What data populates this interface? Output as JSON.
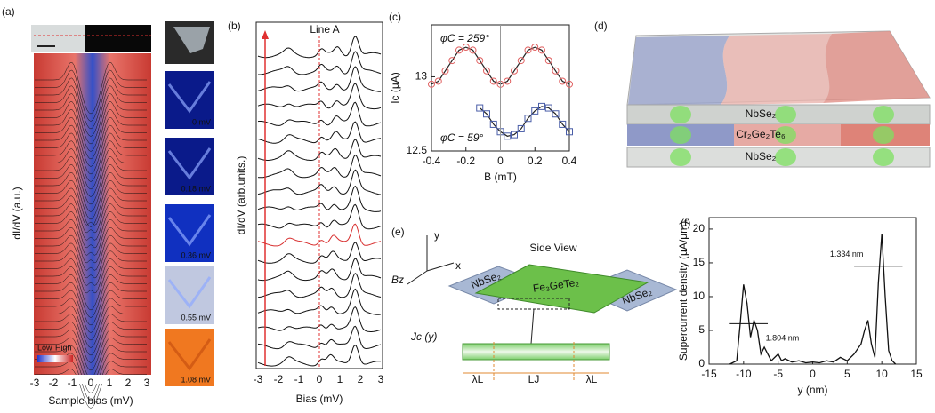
{
  "figure": {
    "a": {
      "label": "(a)",
      "ylabel": "dI/dV (a.u.)",
      "xlabel": "Sample bias (mV)",
      "xticks": [
        -3,
        -2,
        -1,
        0,
        1,
        2,
        3
      ],
      "legend_low": "Low",
      "legend_high": "High",
      "maps": [
        "0 mV",
        "0.18 mV",
        "0.36 mV",
        "0.55 mV",
        "1.08 mV"
      ]
    },
    "b": {
      "label": "(b)",
      "line": "Line A",
      "ylabel": "dI/dV (arb.units.)",
      "xlabel": "Bias (mV)",
      "xticks": [
        -3,
        -2,
        -1,
        0,
        1,
        2,
        3
      ]
    },
    "d": {
      "label": "(d)",
      "layers": [
        "NbSe₂",
        "Cr₂Ge₂Te₆",
        "NbSe₂"
      ]
    },
    "e": {
      "label": "(e)",
      "view": "Side View",
      "axes": [
        "y",
        "x",
        "Bz"
      ],
      "electrodes": [
        "NbSe₂",
        "NbSe₂"
      ],
      "flake": "Fe₃GeTe₂",
      "current": "Jc (y)",
      "lengths": [
        "λL",
        "LJ",
        "λL"
      ]
    }
  },
  "chart_data": [
    {
      "type": "scatter",
      "label": "(c)",
      "xlabel": "B (mT)",
      "ylabel": "Ic (μA)",
      "xlim": [
        -0.4,
        0.4
      ],
      "xticks": [
        -0.4,
        -0.2,
        0,
        0.2,
        0.4
      ],
      "ylim": [
        12.5,
        13.35
      ],
      "yticks": [
        12.5,
        13
      ],
      "series": [
        {
          "name": "φC = 259°",
          "color": "#e06060",
          "marker": "circle",
          "x": [
            -0.4,
            -0.36,
            -0.32,
            -0.28,
            -0.24,
            -0.2,
            -0.16,
            -0.12,
            -0.08,
            -0.04,
            0,
            0.04,
            0.08,
            0.12,
            0.16,
            0.2,
            0.24,
            0.28,
            0.32,
            0.36,
            0.4
          ],
          "values": [
            12.95,
            12.97,
            13.04,
            13.11,
            13.18,
            13.2,
            13.18,
            13.11,
            13.04,
            12.97,
            12.95,
            12.97,
            13.04,
            13.11,
            13.18,
            13.2,
            13.18,
            13.11,
            13.04,
            12.97,
            12.95
          ]
        },
        {
          "name": "φC = 59°",
          "color": "#4a5ea8",
          "marker": "square",
          "x": [
            -0.12,
            -0.08,
            -0.04,
            0,
            0.04,
            0.08,
            0.12,
            0.16,
            0.2,
            0.24,
            0.28,
            0.32,
            0.36,
            0.4
          ],
          "values": [
            12.79,
            12.75,
            12.68,
            12.63,
            12.6,
            12.61,
            12.65,
            12.72,
            12.77,
            12.8,
            12.79,
            12.75,
            12.68,
            12.63
          ]
        }
      ]
    },
    {
      "type": "line",
      "label": "(f)",
      "xlabel": "y (nm)",
      "ylabel": "Supercurrent density (μA/μm)",
      "xlim": [
        -15,
        15
      ],
      "xticks": [
        -15,
        -10,
        -5,
        0,
        5,
        10,
        15
      ],
      "ylim": [
        0,
        21.7
      ],
      "yticks": [
        0,
        5,
        10,
        15,
        20
      ],
      "annotations": [
        "1.804 nm",
        "1.334 nm"
      ],
      "x": [
        -12,
        -11,
        -10.5,
        -10,
        -9.5,
        -9,
        -8.5,
        -8,
        -7.5,
        -7,
        -6.5,
        -6,
        -5,
        -4.5,
        -4,
        -3,
        -2,
        -1,
        0,
        1,
        2,
        3,
        4,
        5,
        6,
        7,
        7.5,
        8,
        8.5,
        9,
        9.5,
        10,
        10.5,
        11,
        11.5,
        12
      ],
      "values": [
        0,
        0.5,
        6,
        11.8,
        9,
        4,
        6.5,
        5,
        1.5,
        2.5,
        1.5,
        0.5,
        1.5,
        0.5,
        0.8,
        0.3,
        0.5,
        0.2,
        0.3,
        0.2,
        0.5,
        0.3,
        1,
        0.5,
        1.5,
        3,
        5,
        6.5,
        3,
        1,
        12,
        19.3,
        10,
        2,
        0.5,
        0
      ],
      "color": "#111111"
    }
  ]
}
